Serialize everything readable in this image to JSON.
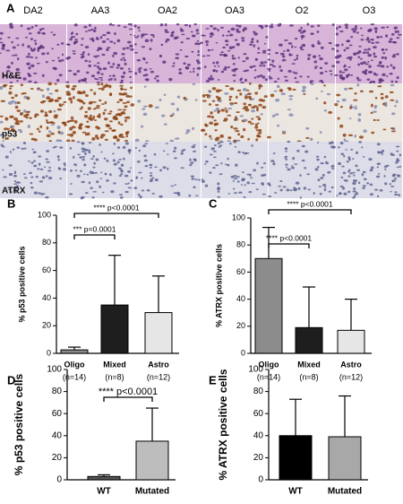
{
  "panel_a": {
    "label": "A",
    "columns": [
      "DA2",
      "AA3",
      "OA2",
      "OA3",
      "O2",
      "O3"
    ],
    "rows": [
      "H&E",
      "p53",
      "ATRX"
    ]
  },
  "chart_data": [
    {
      "type": "bar",
      "label": "B",
      "ylabel": "% p53 positive cells",
      "categories": [
        "Oligo",
        "Mixed",
        "Astro"
      ],
      "n_labels": [
        "(n=14)",
        "(n=8)",
        "(n=12)"
      ],
      "values": [
        2.5,
        35,
        29.5
      ],
      "errors": [
        2,
        36,
        26.5
      ],
      "colors": [
        "#8c8c8c",
        "#1e1e1e",
        "#e6e6e6"
      ],
      "ylim": [
        0,
        100
      ],
      "yticks": [
        0,
        20,
        40,
        60,
        80,
        100
      ],
      "annotations": [
        "*** p=0.0001",
        "**** p<0.0001"
      ]
    },
    {
      "type": "bar",
      "label": "C",
      "ylabel": "% ATRX positive cells",
      "categories": [
        "Oligo",
        "Mixed",
        "Astro"
      ],
      "n_labels": [
        "(n=14)",
        "(n=8)",
        "(n=12)"
      ],
      "values": [
        70,
        19,
        17
      ],
      "errors": [
        23,
        30,
        23
      ],
      "colors": [
        "#8c8c8c",
        "#1e1e1e",
        "#e6e6e6"
      ],
      "ylim": [
        0,
        100
      ],
      "yticks": [
        0,
        20,
        40,
        60,
        80,
        100
      ],
      "annotations": [
        "**** p<0.0001",
        "**** p<0.0001"
      ]
    },
    {
      "type": "bar",
      "label": "D",
      "ylabel": "% p53 positive cells",
      "categories": [
        "WT",
        "Mutated"
      ],
      "values": [
        3,
        35
      ],
      "errors": [
        1.5,
        30
      ],
      "colors": [
        "#555555",
        "#bdbdbd"
      ],
      "ylim": [
        0,
        100
      ],
      "yticks": [
        0,
        20,
        40,
        60,
        80,
        100
      ],
      "annotations": [
        "**** p<0.0001"
      ]
    },
    {
      "type": "bar",
      "label": "E",
      "ylabel": "% ATRX positive cells",
      "categories": [
        "WT",
        "Mutated"
      ],
      "values": [
        40,
        39
      ],
      "errors": [
        33,
        37
      ],
      "colors": [
        "#000000",
        "#a8a8a8"
      ],
      "ylim": [
        0,
        100
      ],
      "yticks": [
        0,
        20,
        40,
        60,
        80,
        100
      ]
    }
  ]
}
